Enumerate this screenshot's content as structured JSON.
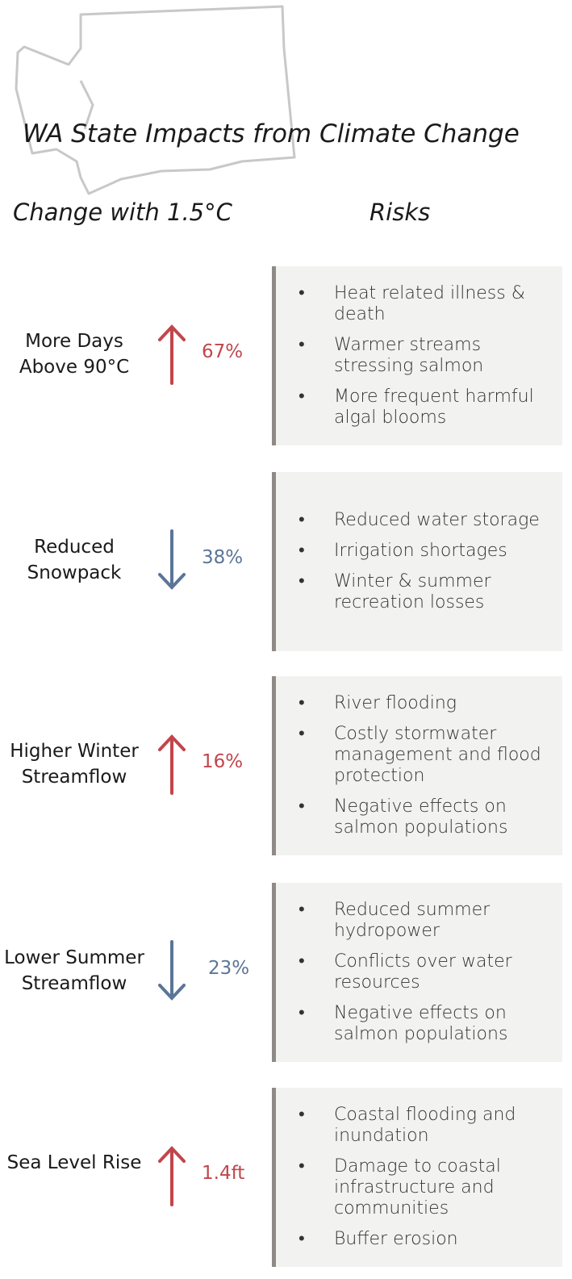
{
  "header": {
    "title": "WA State Impacts from Climate Change",
    "column_left": "Change with 1.5°C",
    "column_right": "Risks"
  },
  "colors": {
    "up": "#c1464b",
    "down": "#5b7597"
  },
  "rows": [
    {
      "label": "More Days Above 90°C",
      "direction": "up",
      "value": "67%",
      "risks": [
        "Heat related illness & death",
        "Warmer streams stressing salmon",
        "More frequent harmful algal blooms"
      ]
    },
    {
      "label": "Reduced Snowpack",
      "direction": "down",
      "value": "38%",
      "risks": [
        "Reduced water storage",
        "Irrigation shortages",
        "Winter & summer recreation losses"
      ]
    },
    {
      "label": "Higher Winter Streamflow",
      "direction": "up",
      "value": "16%",
      "risks": [
        "River flooding",
        "Costly stormwater management and flood protection",
        "Negative effects on salmon populations"
      ]
    },
    {
      "label": "Lower Summer Streamflow",
      "direction": "down",
      "value": "23%",
      "risks": [
        "Reduced summer hydropower",
        "Conflicts over water resources",
        "Negative effects on salmon populations"
      ]
    },
    {
      "label": "Sea Level Rise",
      "direction": "up",
      "value": "1.4ft",
      "risks": [
        "Coastal flooding and inundation",
        "Damage to coastal infrastructure and communities",
        "Buffer erosion"
      ]
    }
  ]
}
